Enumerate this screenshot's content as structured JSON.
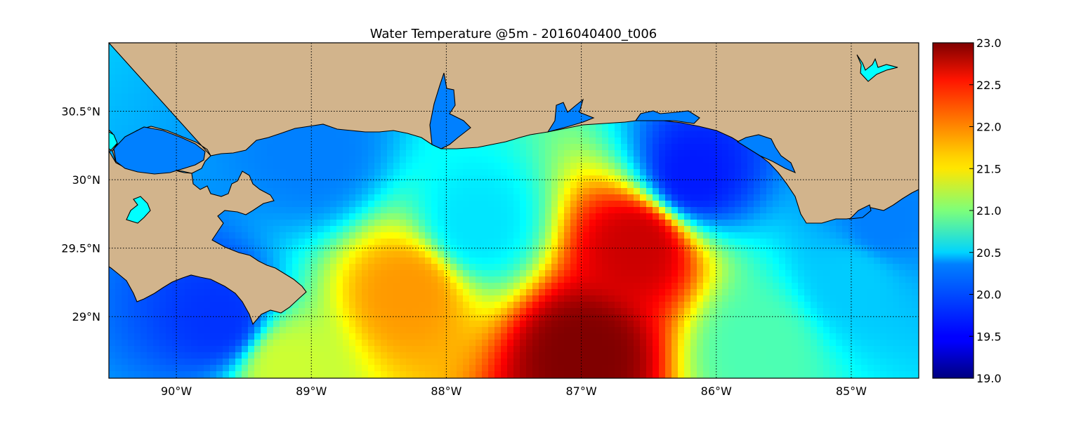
{
  "title": "Water Temperature @5m - 2016040400_t006",
  "map": {
    "lon_range": [
      -90.5,
      -84.5
    ],
    "lat_range": [
      28.55,
      31.0
    ],
    "lon_ticks": [
      {
        "value": -90,
        "label": "90°W"
      },
      {
        "value": -89,
        "label": "89°W"
      },
      {
        "value": -88,
        "label": "88°W"
      },
      {
        "value": -87,
        "label": "87°W"
      },
      {
        "value": -86,
        "label": "86°W"
      },
      {
        "value": -85,
        "label": "85°W"
      }
    ],
    "lat_ticks": [
      {
        "value": 30.5,
        "label": "30.5°N"
      },
      {
        "value": 30.0,
        "label": "30°N"
      },
      {
        "value": 29.5,
        "label": "29.5°N"
      },
      {
        "value": 29.0,
        "label": "29°N"
      }
    ],
    "gridlines": "dotted",
    "land_color": "#d2b48c",
    "coastline_color": "#000000"
  },
  "colorbar": {
    "min": 19.0,
    "max": 23.0,
    "colormap": "jet",
    "ticks": [
      {
        "value": 19.0,
        "label": "19.0"
      },
      {
        "value": 19.5,
        "label": "19.5"
      },
      {
        "value": 20.0,
        "label": "20.0"
      },
      {
        "value": 20.5,
        "label": "20.5"
      },
      {
        "value": 21.0,
        "label": "21.0"
      },
      {
        "value": 21.5,
        "label": "21.5"
      },
      {
        "value": 22.0,
        "label": "22.0"
      },
      {
        "value": 22.5,
        "label": "22.5"
      },
      {
        "value": 23.0,
        "label": "23.0"
      }
    ]
  },
  "chart_data": {
    "type": "heatmap",
    "title": "Water Temperature @5m - 2016040400_t006",
    "xlabel": "",
    "ylabel": "",
    "xlim": [
      -90.5,
      -84.5
    ],
    "ylim": [
      28.55,
      31.0
    ],
    "value_range": [
      19.0,
      23.0
    ],
    "colormap": "jet",
    "grid": true,
    "regions": [
      {
        "lon": -87.0,
        "lat": 28.75,
        "value": 23.0
      },
      {
        "lon": -86.6,
        "lat": 29.55,
        "value": 22.7
      },
      {
        "lon": -88.3,
        "lat": 29.2,
        "value": 21.9
      },
      {
        "lon": -89.2,
        "lat": 28.65,
        "value": 21.3
      },
      {
        "lon": -85.7,
        "lat": 28.8,
        "value": 20.8
      },
      {
        "lon": -85.0,
        "lat": 29.3,
        "value": 20.3
      },
      {
        "lon": -87.8,
        "lat": 29.7,
        "value": 20.4
      },
      {
        "lon": -86.2,
        "lat": 30.05,
        "value": 19.6
      },
      {
        "lon": -89.7,
        "lat": 29.0,
        "value": 19.7
      },
      {
        "lon": -89.0,
        "lat": 30.2,
        "value": 20.0
      },
      {
        "lon": -84.8,
        "lat": 29.7,
        "value": 20.0
      }
    ]
  }
}
